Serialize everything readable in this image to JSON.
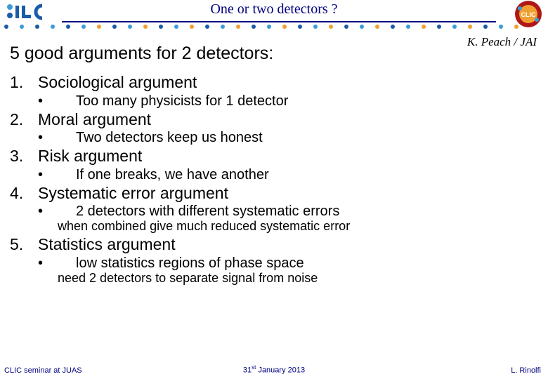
{
  "header": {
    "title": "One or two detectors ?",
    "title_color": "#000080",
    "attribution": "K. Peach / JAI",
    "line_color": "#000080",
    "dot_colors": [
      "#1a5ca8",
      "#3c9cd8",
      "#f0a030"
    ]
  },
  "subtitle": "5 good arguments for 2 detectors:",
  "arguments": [
    {
      "num": "1.",
      "title": "Sociological argument",
      "bullets": [
        {
          "text": "Too many physicists for 1 detector"
        }
      ]
    },
    {
      "num": "2.",
      "title": "Moral argument",
      "bullets": [
        {
          "text": "Two detectors keep us honest"
        }
      ]
    },
    {
      "num": "3.",
      "title": "Risk argument",
      "bullets": [
        {
          "text": "If one breaks, we have another"
        }
      ]
    },
    {
      "num": "4.",
      "title": "Systematic error argument",
      "bullets": [
        {
          "text": "2 detectors with different systematic errors",
          "note": "when combined give much reduced systematic error"
        }
      ]
    },
    {
      "num": "5.",
      "title": "Statistics argument",
      "bullets": [
        {
          "text": "low statistics regions of phase space",
          "note": "need 2 detectors to separate signal from noise"
        }
      ]
    }
  ],
  "footer": {
    "left": "CLIC seminar at JUAS",
    "center_pre": "31",
    "center_sup": "st",
    "center_post": " January 2013",
    "right": "L. Rinolfi",
    "color": "#000080"
  },
  "logos": {
    "ilc": {
      "bg": "#ffffff",
      "blue": "#1a5ca8",
      "light": "#3c9cd8",
      "orange": "#f0a030"
    },
    "clic": {
      "bg_outer": "#b01818",
      "bg_inner": "#f0a030",
      "accent": "#1a5ca8",
      "text": "CLIC"
    }
  }
}
